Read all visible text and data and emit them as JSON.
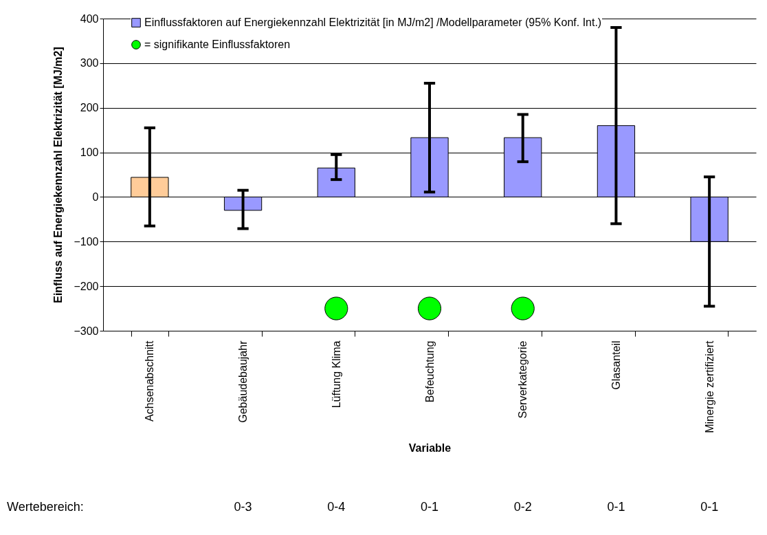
{
  "chart_data": {
    "type": "bar",
    "ylabel": "Einfluss auf Energiekennzahl Elektrizität [MJ/m2]",
    "xlabel": "Variable",
    "categories": [
      "Achsenabschnitt",
      "Gebäudebaujahr",
      "Lüftung Klima",
      "Befeuchtung",
      "Serverkategorie",
      "Glasanteil",
      "Minergie zertifiziert"
    ],
    "series": [
      {
        "name": "Einflussfaktoren auf Energiekennzahl Elektrizität [in MJ/m2] /Modellparameter (95% Konf. Int.)",
        "color": "#9999ff",
        "colors": [
          "#ffcc99",
          "#9999ff",
          "#9999ff",
          "#9999ff",
          "#9999ff",
          "#9999ff",
          "#9999ff"
        ],
        "values": [
          44,
          -30,
          65,
          133,
          133,
          160,
          -100
        ],
        "errors": [
          [
            -65,
            155
          ],
          [
            -71,
            15
          ],
          [
            39,
            95
          ],
          [
            11,
            255
          ],
          [
            79,
            185
          ],
          [
            -60,
            380
          ],
          [
            -245,
            45
          ]
        ]
      },
      {
        "name": "= signifikante Einflussfaktoren",
        "type": "scatter",
        "color": "#00ff00",
        "marker": "circle",
        "x": [
          "Lüftung Klima",
          "Befeuchtung",
          "Serverkategorie"
        ],
        "values": [
          -250,
          -250,
          -250
        ]
      }
    ],
    "ylim": [
      -300,
      400
    ],
    "yticks": [
      -300,
      -200,
      -100,
      0,
      100,
      200,
      300,
      400
    ],
    "grid": "y",
    "legend": "top left",
    "annotations": [
      "Wertebereich:",
      "0-3",
      "0-4",
      "0-1",
      "0-2",
      "0-1",
      "0-1"
    ]
  }
}
